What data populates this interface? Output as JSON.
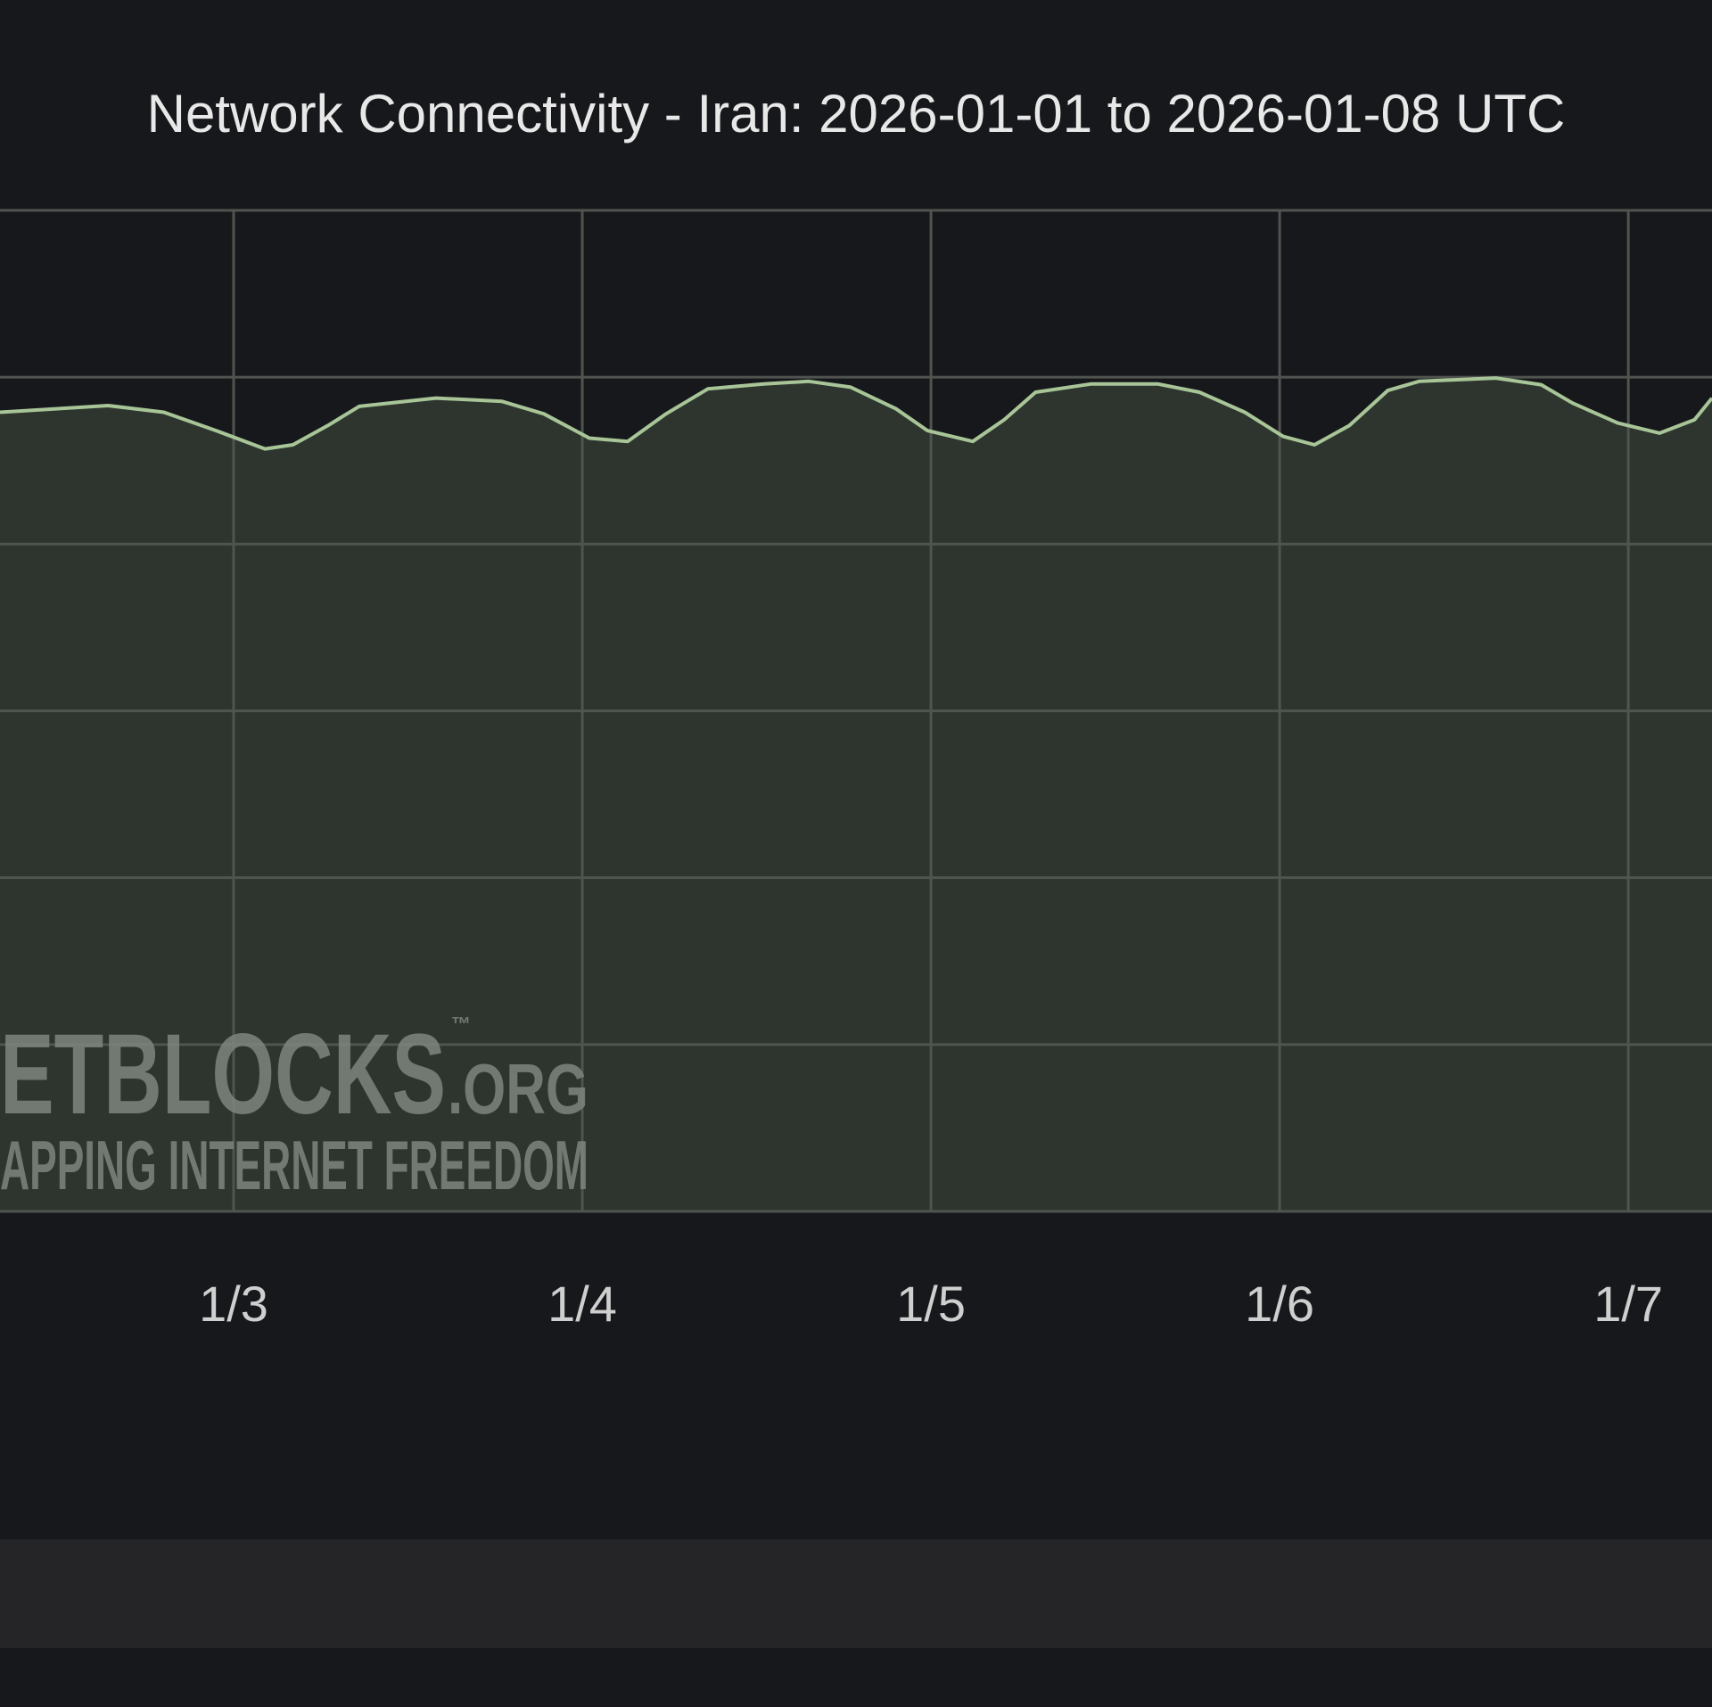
{
  "chart_data": {
    "type": "area",
    "title": "Network Connectivity - Iran: 2026-01-01 to 2026-01-08 UTC",
    "x": [
      2.33,
      2.64,
      2.8,
      2.95,
      3.09,
      3.17,
      3.27,
      3.36,
      3.58,
      3.77,
      3.89,
      4.02,
      4.13,
      4.24,
      4.36,
      4.52,
      4.65,
      4.77,
      4.9,
      4.99,
      5.12,
      5.21,
      5.3,
      5.46,
      5.65,
      5.77,
      5.9,
      6.01,
      6.1,
      6.2,
      6.31,
      6.4,
      6.62,
      6.75,
      6.84,
      6.97,
      7.09,
      7.19,
      7.24
    ],
    "values": [
      95.8,
      96.6,
      95.8,
      93.6,
      91.4,
      91.9,
      94.2,
      96.5,
      97.5,
      97.1,
      95.6,
      92.7,
      92.3,
      95.6,
      98.6,
      99.2,
      99.5,
      98.8,
      96.2,
      93.6,
      92.3,
      94.9,
      98.2,
      99.2,
      99.2,
      98.2,
      95.8,
      92.9,
      91.9,
      94.2,
      98.4,
      99.5,
      99.9,
      99.1,
      96.9,
      94.5,
      93.3,
      94.9,
      97.5
    ],
    "color": "#a8c598",
    "fill_color": "#2d352e",
    "xlim": [
      2.33,
      7.24
    ],
    "xticks": [
      {
        "value": 3,
        "label": "1/3"
      },
      {
        "value": 4,
        "label": "1/4"
      },
      {
        "value": 5,
        "label": "1/5"
      },
      {
        "value": 6,
        "label": "1/6"
      },
      {
        "value": 7,
        "label": "1/7"
      }
    ],
    "ylim": [
      0,
      120
    ],
    "yticks": [
      0,
      20,
      40,
      60,
      80,
      100,
      120
    ],
    "grid": true
  },
  "watermark": {
    "brand": "ETBLOCKS",
    "tm": "™",
    "domain": ".ORG",
    "tagline": "APPING INTERNET FREEDOM"
  }
}
